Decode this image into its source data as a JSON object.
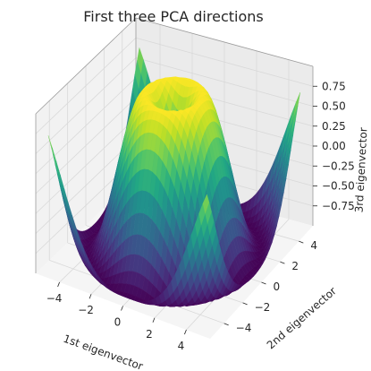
{
  "figure": {
    "title": "First three PCA directions"
  },
  "chart_data": {
    "type": "surface",
    "title": "First three PCA directions",
    "xlabel": "1st eigenvector",
    "ylabel": "2nd eigenvector",
    "zlabel": "3rd eigenvector",
    "xlim": [
      -5.5,
      5.5
    ],
    "ylim": [
      -5.5,
      5.5
    ],
    "zlim": [
      -1.0,
      1.0
    ],
    "xticks": [
      "−4",
      "−2",
      "0",
      "2",
      "4"
    ],
    "yticks": [
      "−4",
      "−2",
      "0",
      "2",
      "4"
    ],
    "zticks": [
      "−0.75",
      "−0.50",
      "−0.25",
      "0.00",
      "0.25",
      "0.50",
      "0.75"
    ],
    "surface": "z = sin(sqrt(x^2 + y^2)) over x, y in [-5, 5]",
    "colormap": "viridis",
    "grid": true
  }
}
